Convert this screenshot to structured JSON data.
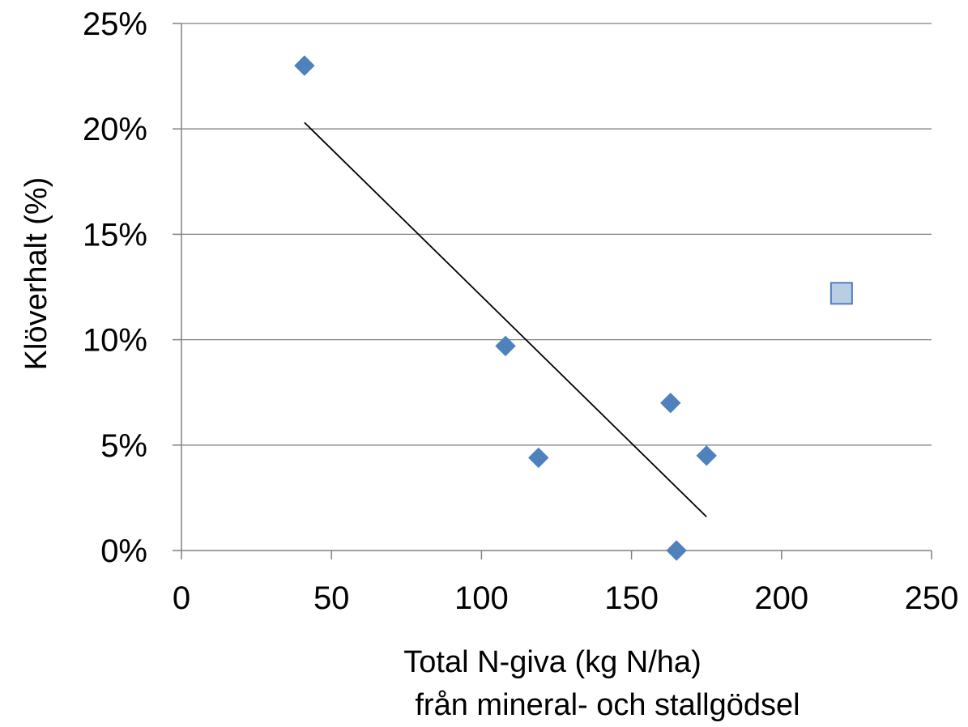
{
  "chart_data": {
    "type": "scatter",
    "title": "",
    "xlabel_lines": [
      "Total N-giva (kg N/ha)",
      "från mineral- och stallgödsel"
    ],
    "ylabel": "Klöverhalt (%)",
    "xlim": [
      0,
      250
    ],
    "ylim": [
      0,
      25
    ],
    "x_ticks": [
      "0",
      "50",
      "100",
      "150",
      "200",
      "250"
    ],
    "y_ticks": [
      "0%",
      "5%",
      "10%",
      "15%",
      "20%",
      "25%"
    ],
    "grid": "horizontal",
    "legend": "none",
    "series": [
      {
        "marker": "diamond",
        "color": "#4F81BD",
        "points": [
          {
            "x": 41,
            "y": 23.0
          },
          {
            "x": 108,
            "y": 9.7
          },
          {
            "x": 119,
            "y": 4.4
          },
          {
            "x": 163,
            "y": 7.0
          },
          {
            "x": 175,
            "y": 4.5
          },
          {
            "x": 165,
            "y": 0.0
          }
        ]
      },
      {
        "marker": "square",
        "color": "#B9CDE5",
        "edge_color": "#4F81BD",
        "points": [
          {
            "x": 220,
            "y": 12.2
          }
        ]
      }
    ],
    "trendline": {
      "type": "linear",
      "color": "#000000",
      "points": [
        {
          "x": 41,
          "y": 20.3
        },
        {
          "x": 175,
          "y": 1.6
        }
      ]
    }
  }
}
